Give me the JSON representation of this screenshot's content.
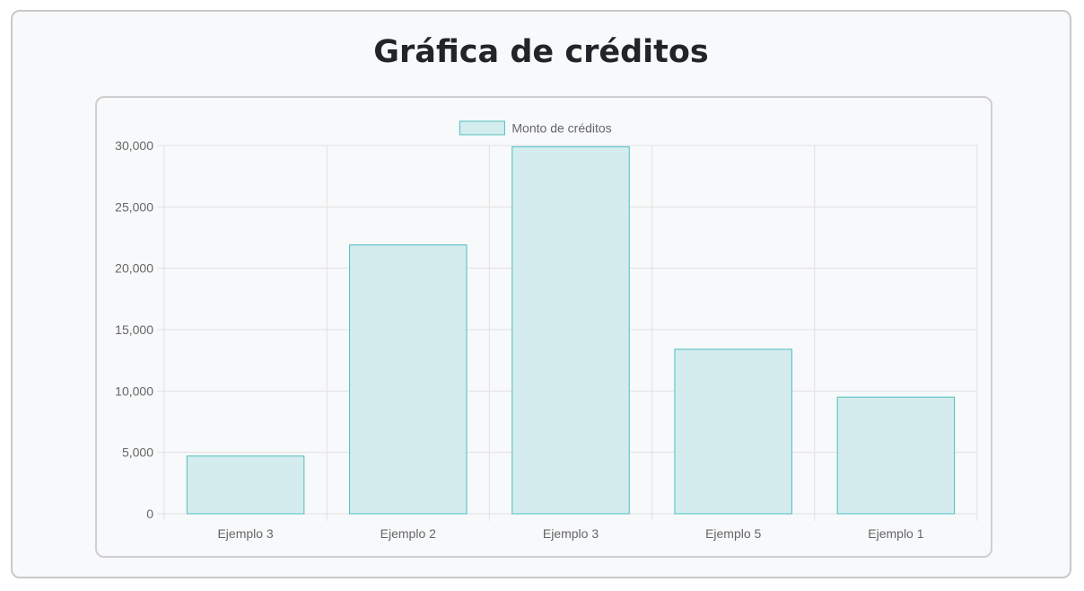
{
  "page": {
    "title": "Gráfica de créditos"
  },
  "chart_data": {
    "type": "bar",
    "categories": [
      "Ejemplo 3",
      "Ejemplo 2",
      "Ejemplo 3",
      "Ejemplo 5",
      "Ejemplo 1"
    ],
    "series": [
      {
        "name": "Monto de créditos",
        "values": [
          4700,
          21900,
          29900,
          13400,
          9500
        ]
      }
    ],
    "title": "",
    "xlabel": "",
    "ylabel": "",
    "ylim": [
      0,
      30000
    ],
    "yticks": [
      "0",
      "5,000",
      "10,000",
      "15,000",
      "20,000",
      "25,000",
      "30,000"
    ],
    "grid": true,
    "legend_position": "top-center",
    "colors": {
      "bar_fill": "#d4ecee",
      "bar_border": "#4bbfc0",
      "grid": "#e1e1e1",
      "text": "#666666"
    }
  }
}
